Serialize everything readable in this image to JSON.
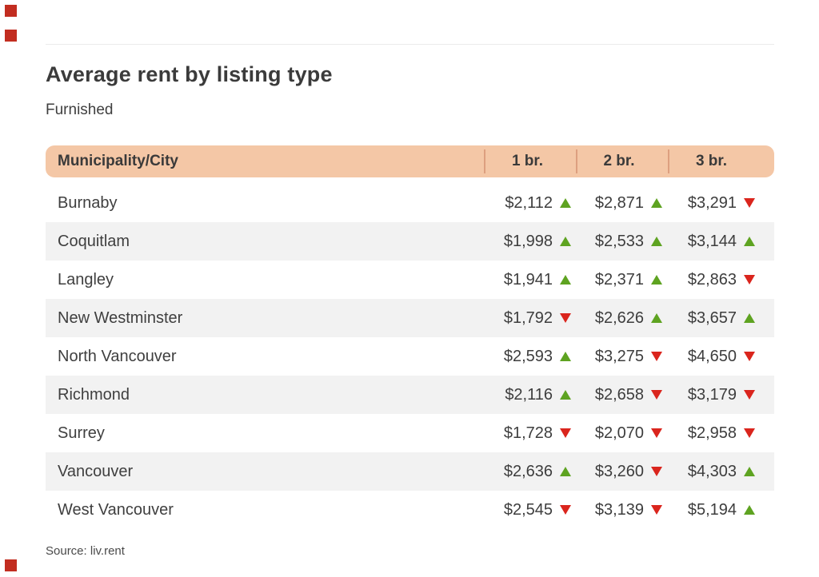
{
  "brand": {
    "accent_red": "#c22d20",
    "header_bg": "#f4c7a6",
    "header_divider": "#dd9f7f",
    "stripe_gray": "#f2f2f2",
    "trend_up_green": "#5ea321",
    "trend_down_red": "#da251d"
  },
  "header": {
    "title": "Average rent by listing type",
    "subtitle": "Furnished"
  },
  "footer": {
    "source": "Source: liv.rent"
  },
  "chart_data": {
    "type": "table",
    "title": "Average rent by listing type",
    "subtitle": "Furnished",
    "columns": [
      "Municipality/City",
      "1 br.",
      "2 br.",
      "3 br."
    ],
    "currency_prefix": "$",
    "rows": [
      {
        "municipality": "Burnaby",
        "values": [
          2112,
          2871,
          3291
        ],
        "trends": [
          "up",
          "up",
          "down"
        ]
      },
      {
        "municipality": "Coquitlam",
        "values": [
          1998,
          2533,
          3144
        ],
        "trends": [
          "up",
          "up",
          "up"
        ]
      },
      {
        "municipality": "Langley",
        "values": [
          1941,
          2371,
          2863
        ],
        "trends": [
          "up",
          "up",
          "down"
        ]
      },
      {
        "municipality": "New Westminster",
        "values": [
          1792,
          2626,
          3657
        ],
        "trends": [
          "down",
          "up",
          "up"
        ]
      },
      {
        "municipality": "North Vancouver",
        "values": [
          2593,
          3275,
          4650
        ],
        "trends": [
          "up",
          "down",
          "down"
        ]
      },
      {
        "municipality": "Richmond",
        "values": [
          2116,
          2658,
          3179
        ],
        "trends": [
          "up",
          "down",
          "down"
        ]
      },
      {
        "municipality": "Surrey",
        "values": [
          1728,
          2070,
          2958
        ],
        "trends": [
          "down",
          "down",
          "down"
        ]
      },
      {
        "municipality": "Vancouver",
        "values": [
          2636,
          3260,
          4303
        ],
        "trends": [
          "up",
          "down",
          "up"
        ]
      },
      {
        "municipality": "West Vancouver",
        "values": [
          2545,
          3139,
          5194
        ],
        "trends": [
          "down",
          "down",
          "up"
        ]
      }
    ]
  }
}
